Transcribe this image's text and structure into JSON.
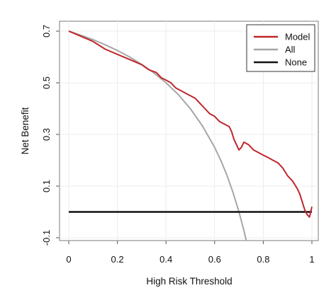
{
  "chart_data": {
    "type": "line",
    "title": "",
    "xlabel": "High Risk Threshold",
    "ylabel": "Net Benefit",
    "xlim": [
      0,
      1
    ],
    "ylim": [
      -0.1,
      0.7
    ],
    "x_ticks": [
      "0",
      "0.2",
      "0.4",
      "0.6",
      "0.8",
      "1"
    ],
    "y_ticks": [
      "0.7",
      "0.5",
      "0.3",
      "0.1",
      "-0.1"
    ],
    "grid": true,
    "legend": {
      "position": "top-right",
      "entries": [
        "Model",
        "All",
        "None"
      ]
    },
    "series": [
      {
        "name": "Model",
        "color": "#c0262b",
        "x": [
          0.0,
          0.05,
          0.1,
          0.15,
          0.2,
          0.25,
          0.3,
          0.33,
          0.36,
          0.38,
          0.4,
          0.42,
          0.44,
          0.46,
          0.48,
          0.5,
          0.52,
          0.54,
          0.56,
          0.58,
          0.6,
          0.62,
          0.64,
          0.66,
          0.67,
          0.68,
          0.69,
          0.7,
          0.71,
          0.72,
          0.74,
          0.76,
          0.78,
          0.8,
          0.82,
          0.84,
          0.86,
          0.88,
          0.9,
          0.92,
          0.94,
          0.95,
          0.96,
          0.97,
          0.98,
          0.99,
          1.0
        ],
        "values": [
          0.7,
          0.68,
          0.66,
          0.63,
          0.61,
          0.59,
          0.57,
          0.55,
          0.54,
          0.52,
          0.51,
          0.5,
          0.48,
          0.47,
          0.46,
          0.45,
          0.44,
          0.42,
          0.4,
          0.38,
          0.37,
          0.35,
          0.34,
          0.33,
          0.31,
          0.28,
          0.26,
          0.24,
          0.25,
          0.27,
          0.26,
          0.24,
          0.23,
          0.22,
          0.21,
          0.2,
          0.19,
          0.17,
          0.14,
          0.12,
          0.09,
          0.07,
          0.04,
          0.01,
          -0.01,
          -0.02,
          0.02
        ]
      },
      {
        "name": "All",
        "color": "#a6a6a6",
        "x": [
          0.0,
          0.05,
          0.1,
          0.15,
          0.2,
          0.25,
          0.3,
          0.35,
          0.4,
          0.45,
          0.5,
          0.55,
          0.6,
          0.625,
          0.65,
          0.675,
          0.7,
          0.72,
          0.73
        ],
        "values": [
          0.7,
          0.684,
          0.667,
          0.647,
          0.625,
          0.6,
          0.571,
          0.538,
          0.5,
          0.455,
          0.4,
          0.333,
          0.25,
          0.2,
          0.143,
          0.077,
          0.0,
          -0.071,
          -0.111
        ]
      },
      {
        "name": "None",
        "color": "#111111",
        "x": [
          0.0,
          1.0
        ],
        "values": [
          0.0,
          0.0
        ]
      }
    ]
  }
}
